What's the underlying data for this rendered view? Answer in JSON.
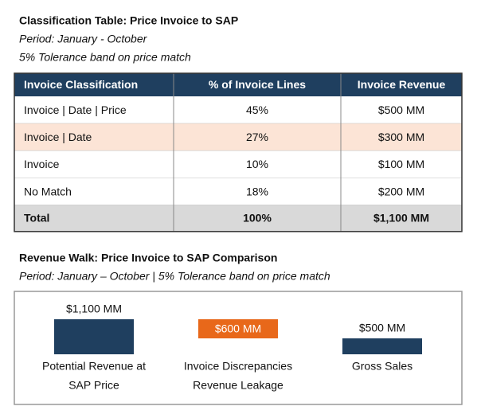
{
  "header": {
    "title": "Classification Table: Price Invoice to SAP",
    "subtitle_lines": [
      "Period: January - October",
      "5% Tolerance band on price match"
    ]
  },
  "table": {
    "columns": [
      "Invoice Classification",
      "% of Invoice Lines",
      "Invoice Revenue"
    ],
    "rows": [
      [
        "Invoice | Date | Price",
        "45%",
        "$500 MM"
      ],
      [
        "Invoice | Date",
        "27%",
        "$300 MM"
      ],
      [
        "Invoice",
        "10%",
        "$100 MM"
      ],
      [
        "No Match",
        "18%",
        "$200 MM"
      ]
    ],
    "total": [
      "Total",
      "100%",
      "$1,100 MM"
    ]
  },
  "chart_data": {
    "type": "waterfall",
    "title": "Revenue Walk: Price Invoice to SAP Comparison",
    "subtitle": "Period: January – October | 5% Tolerance band on price match",
    "categories": [
      [
        "Potential Revenue at",
        "SAP Price"
      ],
      [
        "Invoice Discrepancies",
        "Revenue Leakage"
      ],
      [
        "Gross Sales"
      ]
    ],
    "values": [
      1100,
      600,
      500
    ],
    "value_labels": [
      "$1,100 MM",
      "$600 MM",
      "$500 MM"
    ],
    "colors": [
      "#1f3f5f",
      "#e8681a",
      "#1f3f5f"
    ]
  }
}
